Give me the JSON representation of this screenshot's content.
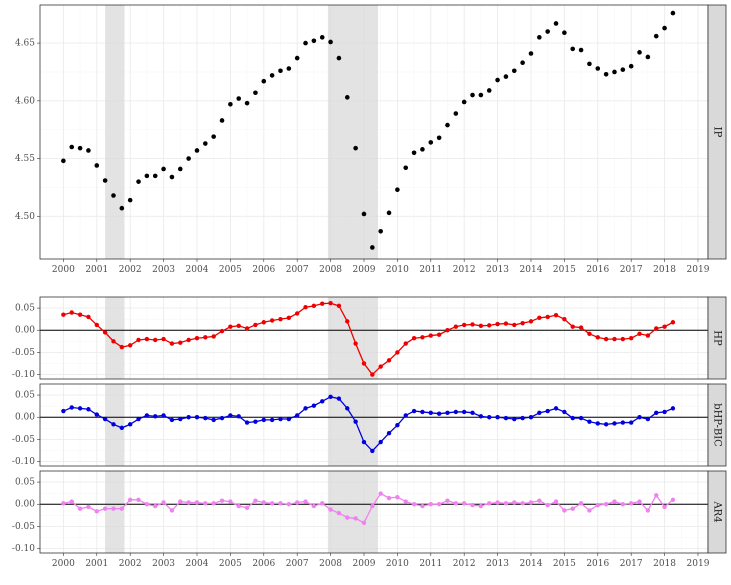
{
  "chart_data": [
    {
      "type": "scatter",
      "strip": "IP",
      "color": "#000000",
      "xlim": [
        1999.3,
        2019.3
      ],
      "ylim": [
        4.463,
        4.683
      ],
      "yticks": [
        4.5,
        4.55,
        4.6,
        4.65
      ],
      "ytick_labels": [
        "4.50",
        "4.55",
        "4.60",
        "4.65"
      ],
      "x": [
        2000.0,
        2000.25,
        2000.5,
        2000.75,
        2001.0,
        2001.25,
        2001.5,
        2001.75,
        2002.0,
        2002.25,
        2002.5,
        2002.75,
        2003.0,
        2003.25,
        2003.5,
        2003.75,
        2004.0,
        2004.25,
        2004.5,
        2004.75,
        2005.0,
        2005.25,
        2005.5,
        2005.75,
        2006.0,
        2006.25,
        2006.5,
        2006.75,
        2007.0,
        2007.25,
        2007.5,
        2007.75,
        2008.0,
        2008.25,
        2008.5,
        2008.75,
        2009.0,
        2009.25,
        2009.5,
        2009.75,
        2010.0,
        2010.25,
        2010.5,
        2010.75,
        2011.0,
        2011.25,
        2011.5,
        2011.75,
        2012.0,
        2012.25,
        2012.5,
        2012.75,
        2013.0,
        2013.25,
        2013.5,
        2013.75,
        2014.0,
        2014.25,
        2014.5,
        2014.75,
        2015.0,
        2015.25,
        2015.5,
        2015.75,
        2016.0,
        2016.25,
        2016.5,
        2016.75,
        2017.0,
        2017.25,
        2017.5,
        2017.75,
        2018.0,
        2018.25
      ],
      "y": [
        4.548,
        4.56,
        4.559,
        4.557,
        4.544,
        4.531,
        4.518,
        4.507,
        4.514,
        4.53,
        4.535,
        4.535,
        4.541,
        4.534,
        4.541,
        4.55,
        4.557,
        4.563,
        4.569,
        4.583,
        4.597,
        4.602,
        4.598,
        4.607,
        4.617,
        4.622,
        4.626,
        4.628,
        4.637,
        4.65,
        4.652,
        4.655,
        4.651,
        4.637,
        4.603,
        4.559,
        4.502,
        4.473,
        4.487,
        4.503,
        4.523,
        4.542,
        4.555,
        4.558,
        4.564,
        4.568,
        4.579,
        4.589,
        4.599,
        4.605,
        4.605,
        4.609,
        4.618,
        4.621,
        4.626,
        4.633,
        4.641,
        4.655,
        4.66,
        4.667,
        4.659,
        4.645,
        4.644,
        4.632,
        4.628,
        4.623,
        4.625,
        4.627,
        4.63,
        4.642,
        4.638,
        4.656,
        4.663,
        4.676
      ]
    },
    {
      "type": "line",
      "strip": "HP",
      "color": "#ee0000",
      "xlim": [
        1999.3,
        2019.3
      ],
      "ylim": [
        -0.11,
        0.075
      ],
      "yticks": [
        -0.1,
        -0.05,
        0.0,
        0.05
      ],
      "ytick_labels": [
        "-0.10",
        "-0.05",
        "0.00",
        "0.05"
      ],
      "x": [
        2000.0,
        2000.25,
        2000.5,
        2000.75,
        2001.0,
        2001.25,
        2001.5,
        2001.75,
        2002.0,
        2002.25,
        2002.5,
        2002.75,
        2003.0,
        2003.25,
        2003.5,
        2003.75,
        2004.0,
        2004.25,
        2004.5,
        2004.75,
        2005.0,
        2005.25,
        2005.5,
        2005.75,
        2006.0,
        2006.25,
        2006.5,
        2006.75,
        2007.0,
        2007.25,
        2007.5,
        2007.75,
        2008.0,
        2008.25,
        2008.5,
        2008.75,
        2009.0,
        2009.25,
        2009.5,
        2009.75,
        2010.0,
        2010.25,
        2010.5,
        2010.75,
        2011.0,
        2011.25,
        2011.5,
        2011.75,
        2012.0,
        2012.25,
        2012.5,
        2012.75,
        2013.0,
        2013.25,
        2013.5,
        2013.75,
        2014.0,
        2014.25,
        2014.5,
        2014.75,
        2015.0,
        2015.25,
        2015.5,
        2015.75,
        2016.0,
        2016.25,
        2016.5,
        2016.75,
        2017.0,
        2017.25,
        2017.5,
        2017.75,
        2018.0,
        2018.25
      ],
      "y": [
        0.035,
        0.04,
        0.035,
        0.03,
        0.012,
        -0.005,
        -0.025,
        -0.038,
        -0.034,
        -0.022,
        -0.02,
        -0.022,
        -0.02,
        -0.03,
        -0.028,
        -0.022,
        -0.018,
        -0.016,
        -0.014,
        -0.002,
        0.008,
        0.01,
        0.004,
        0.012,
        0.018,
        0.022,
        0.025,
        0.028,
        0.038,
        0.052,
        0.055,
        0.06,
        0.061,
        0.055,
        0.02,
        -0.03,
        -0.075,
        -0.1,
        -0.082,
        -0.068,
        -0.05,
        -0.03,
        -0.018,
        -0.016,
        -0.012,
        -0.01,
        0.0,
        0.008,
        0.012,
        0.013,
        0.01,
        0.011,
        0.014,
        0.015,
        0.012,
        0.016,
        0.02,
        0.028,
        0.03,
        0.034,
        0.025,
        0.008,
        0.006,
        -0.008,
        -0.016,
        -0.02,
        -0.02,
        -0.02,
        -0.018,
        -0.008,
        -0.012,
        0.004,
        0.008,
        0.018
      ]
    },
    {
      "type": "line",
      "strip": "bHP-BIC",
      "color": "#0000dd",
      "xlim": [
        1999.3,
        2019.3
      ],
      "ylim": [
        -0.11,
        0.075
      ],
      "yticks": [
        -0.1,
        -0.05,
        0.0,
        0.05
      ],
      "ytick_labels": [
        "-0.10",
        "-0.05",
        "0.00",
        "0.05"
      ],
      "x": [
        2000.0,
        2000.25,
        2000.5,
        2000.75,
        2001.0,
        2001.25,
        2001.5,
        2001.75,
        2002.0,
        2002.25,
        2002.5,
        2002.75,
        2003.0,
        2003.25,
        2003.5,
        2003.75,
        2004.0,
        2004.25,
        2004.5,
        2004.75,
        2005.0,
        2005.25,
        2005.5,
        2005.75,
        2006.0,
        2006.25,
        2006.5,
        2006.75,
        2007.0,
        2007.25,
        2007.5,
        2007.75,
        2008.0,
        2008.25,
        2008.5,
        2008.75,
        2009.0,
        2009.25,
        2009.5,
        2009.75,
        2010.0,
        2010.25,
        2010.5,
        2010.75,
        2011.0,
        2011.25,
        2011.5,
        2011.75,
        2012.0,
        2012.25,
        2012.5,
        2012.75,
        2013.0,
        2013.25,
        2013.5,
        2013.75,
        2014.0,
        2014.25,
        2014.5,
        2014.75,
        2015.0,
        2015.25,
        2015.5,
        2015.75,
        2016.0,
        2016.25,
        2016.5,
        2016.75,
        2017.0,
        2017.25,
        2017.5,
        2017.75,
        2018.0,
        2018.25
      ],
      "y": [
        0.014,
        0.022,
        0.02,
        0.018,
        0.006,
        -0.004,
        -0.016,
        -0.024,
        -0.016,
        -0.004,
        0.004,
        0.002,
        0.004,
        -0.006,
        -0.004,
        0.0,
        0.0,
        -0.002,
        -0.006,
        -0.002,
        0.004,
        0.002,
        -0.012,
        -0.01,
        -0.006,
        -0.006,
        -0.004,
        -0.004,
        0.004,
        0.02,
        0.026,
        0.036,
        0.046,
        0.042,
        0.02,
        -0.01,
        -0.056,
        -0.076,
        -0.056,
        -0.036,
        -0.018,
        0.004,
        0.014,
        0.012,
        0.01,
        0.008,
        0.01,
        0.012,
        0.012,
        0.01,
        0.002,
        0.0,
        0.0,
        -0.002,
        -0.004,
        -0.002,
        0.0,
        0.01,
        0.014,
        0.02,
        0.012,
        -0.002,
        -0.002,
        -0.01,
        -0.014,
        -0.016,
        -0.014,
        -0.012,
        -0.012,
        0.0,
        -0.004,
        0.01,
        0.012,
        0.02
      ]
    },
    {
      "type": "line",
      "strip": "AR4",
      "color": "#ee82ee",
      "xlim": [
        1999.3,
        2019.3
      ],
      "ylim": [
        -0.11,
        0.075
      ],
      "yticks": [
        -0.1,
        -0.05,
        0.0,
        0.05
      ],
      "ytick_labels": [
        "-0.10",
        "-0.05",
        "0.00",
        "0.05"
      ],
      "x": [
        2000.0,
        2000.25,
        2000.5,
        2000.75,
        2001.0,
        2001.25,
        2001.5,
        2001.75,
        2002.0,
        2002.25,
        2002.5,
        2002.75,
        2003.0,
        2003.25,
        2003.5,
        2003.75,
        2004.0,
        2004.25,
        2004.5,
        2004.75,
        2005.0,
        2005.25,
        2005.5,
        2005.75,
        2006.0,
        2006.25,
        2006.5,
        2006.75,
        2007.0,
        2007.25,
        2007.5,
        2007.75,
        2008.0,
        2008.25,
        2008.5,
        2008.75,
        2009.0,
        2009.25,
        2009.5,
        2009.75,
        2010.0,
        2010.25,
        2010.5,
        2010.75,
        2011.0,
        2011.25,
        2011.5,
        2011.75,
        2012.0,
        2012.25,
        2012.5,
        2012.75,
        2013.0,
        2013.25,
        2013.5,
        2013.75,
        2014.0,
        2014.25,
        2014.5,
        2014.75,
        2015.0,
        2015.25,
        2015.5,
        2015.75,
        2016.0,
        2016.25,
        2016.5,
        2016.75,
        2017.0,
        2017.25,
        2017.5,
        2017.75,
        2018.0,
        2018.25
      ],
      "y": [
        0.002,
        0.006,
        -0.01,
        -0.006,
        -0.016,
        -0.01,
        -0.01,
        -0.01,
        0.01,
        0.01,
        0.0,
        -0.004,
        0.004,
        -0.014,
        0.006,
        0.004,
        0.004,
        0.002,
        0.002,
        0.008,
        0.006,
        -0.004,
        -0.008,
        0.008,
        0.004,
        0.002,
        0.002,
        0.0,
        0.004,
        0.006,
        -0.004,
        0.002,
        -0.012,
        -0.02,
        -0.03,
        -0.032,
        -0.042,
        -0.004,
        0.024,
        0.014,
        0.016,
        0.006,
        0.0,
        -0.004,
        0.0,
        0.0,
        0.008,
        0.002,
        0.002,
        -0.002,
        -0.004,
        0.002,
        0.004,
        0.002,
        0.004,
        0.002,
        0.004,
        0.008,
        -0.002,
        0.006,
        -0.014,
        -0.01,
        0.002,
        -0.014,
        -0.002,
        0.0,
        0.006,
        0.0,
        0.002,
        0.006,
        -0.014,
        0.02,
        -0.006,
        0.01
      ]
    }
  ],
  "x_axis": {
    "ticks": [
      2000,
      2001,
      2002,
      2003,
      2004,
      2005,
      2006,
      2007,
      2008,
      2009,
      2010,
      2011,
      2012,
      2013,
      2014,
      2015,
      2016,
      2017,
      2018,
      2019
    ],
    "labels": [
      "2000",
      "2001",
      "2002",
      "2003",
      "2004",
      "2005",
      "2006",
      "2007",
      "2008",
      "2009",
      "2010",
      "2011",
      "2012",
      "2013",
      "2014",
      "2015",
      "2016",
      "2017",
      "2018",
      "2019"
    ]
  },
  "recessions": [
    {
      "start": 2001.25,
      "end": 2001.83
    },
    {
      "start": 2007.92,
      "end": 2009.42
    }
  ],
  "grid": true,
  "legend": "none",
  "recession_shade_color": "#d9d9d9"
}
